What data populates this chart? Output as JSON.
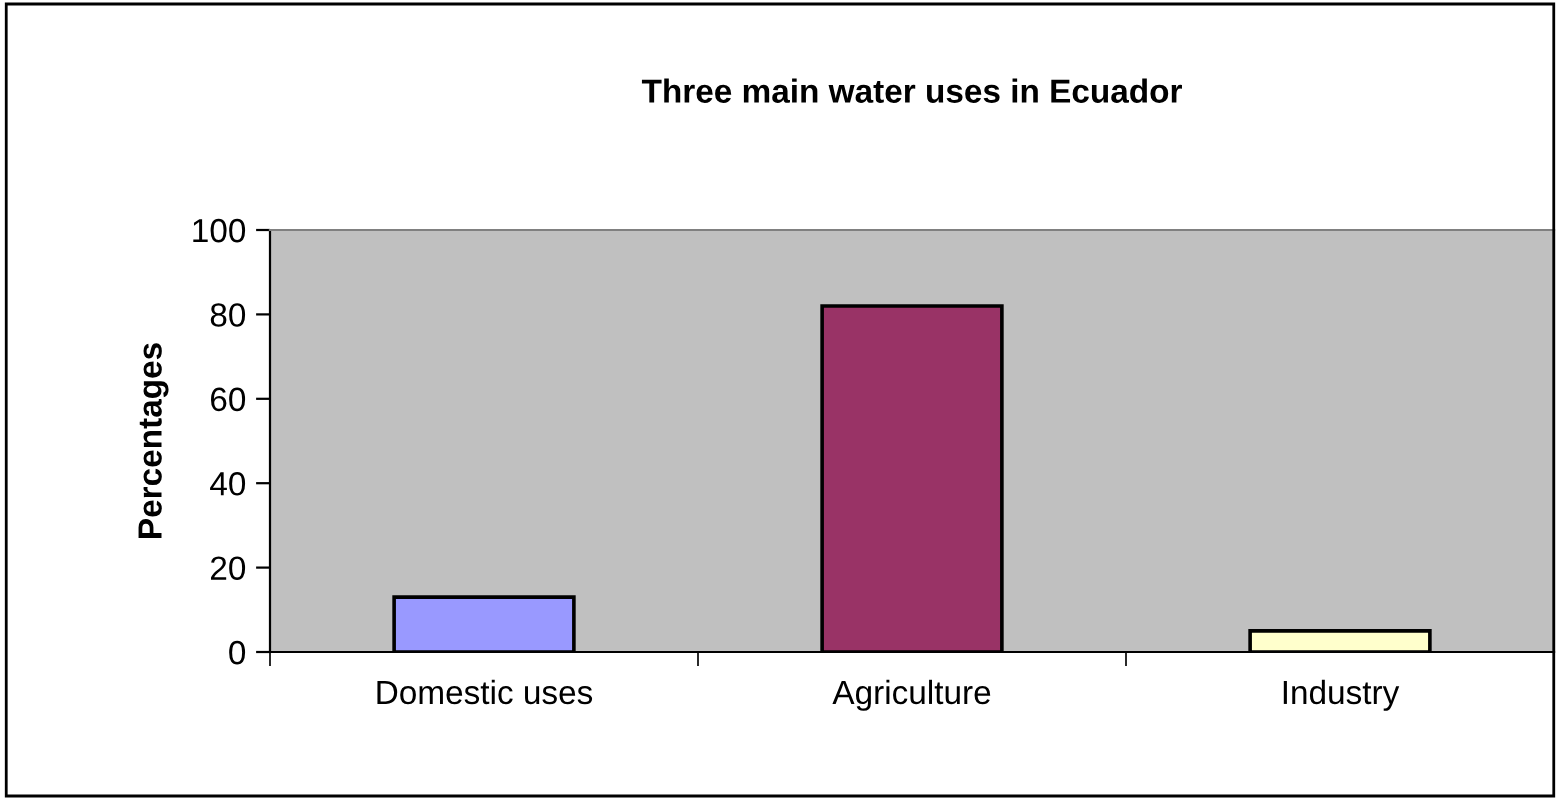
{
  "chart_data": {
    "type": "bar",
    "title": "Three main water uses in Ecuador",
    "ylabel": "Percentages",
    "categories": [
      "Domestic uses",
      "Agriculture",
      "Industry"
    ],
    "values": [
      13,
      82,
      5
    ],
    "colors": [
      "#9999ff",
      "#993366",
      "#ffffcc"
    ],
    "ylim": [
      0,
      100
    ],
    "yticks": [
      0,
      20,
      40,
      60,
      80,
      100
    ],
    "grid": false,
    "legend": false
  }
}
